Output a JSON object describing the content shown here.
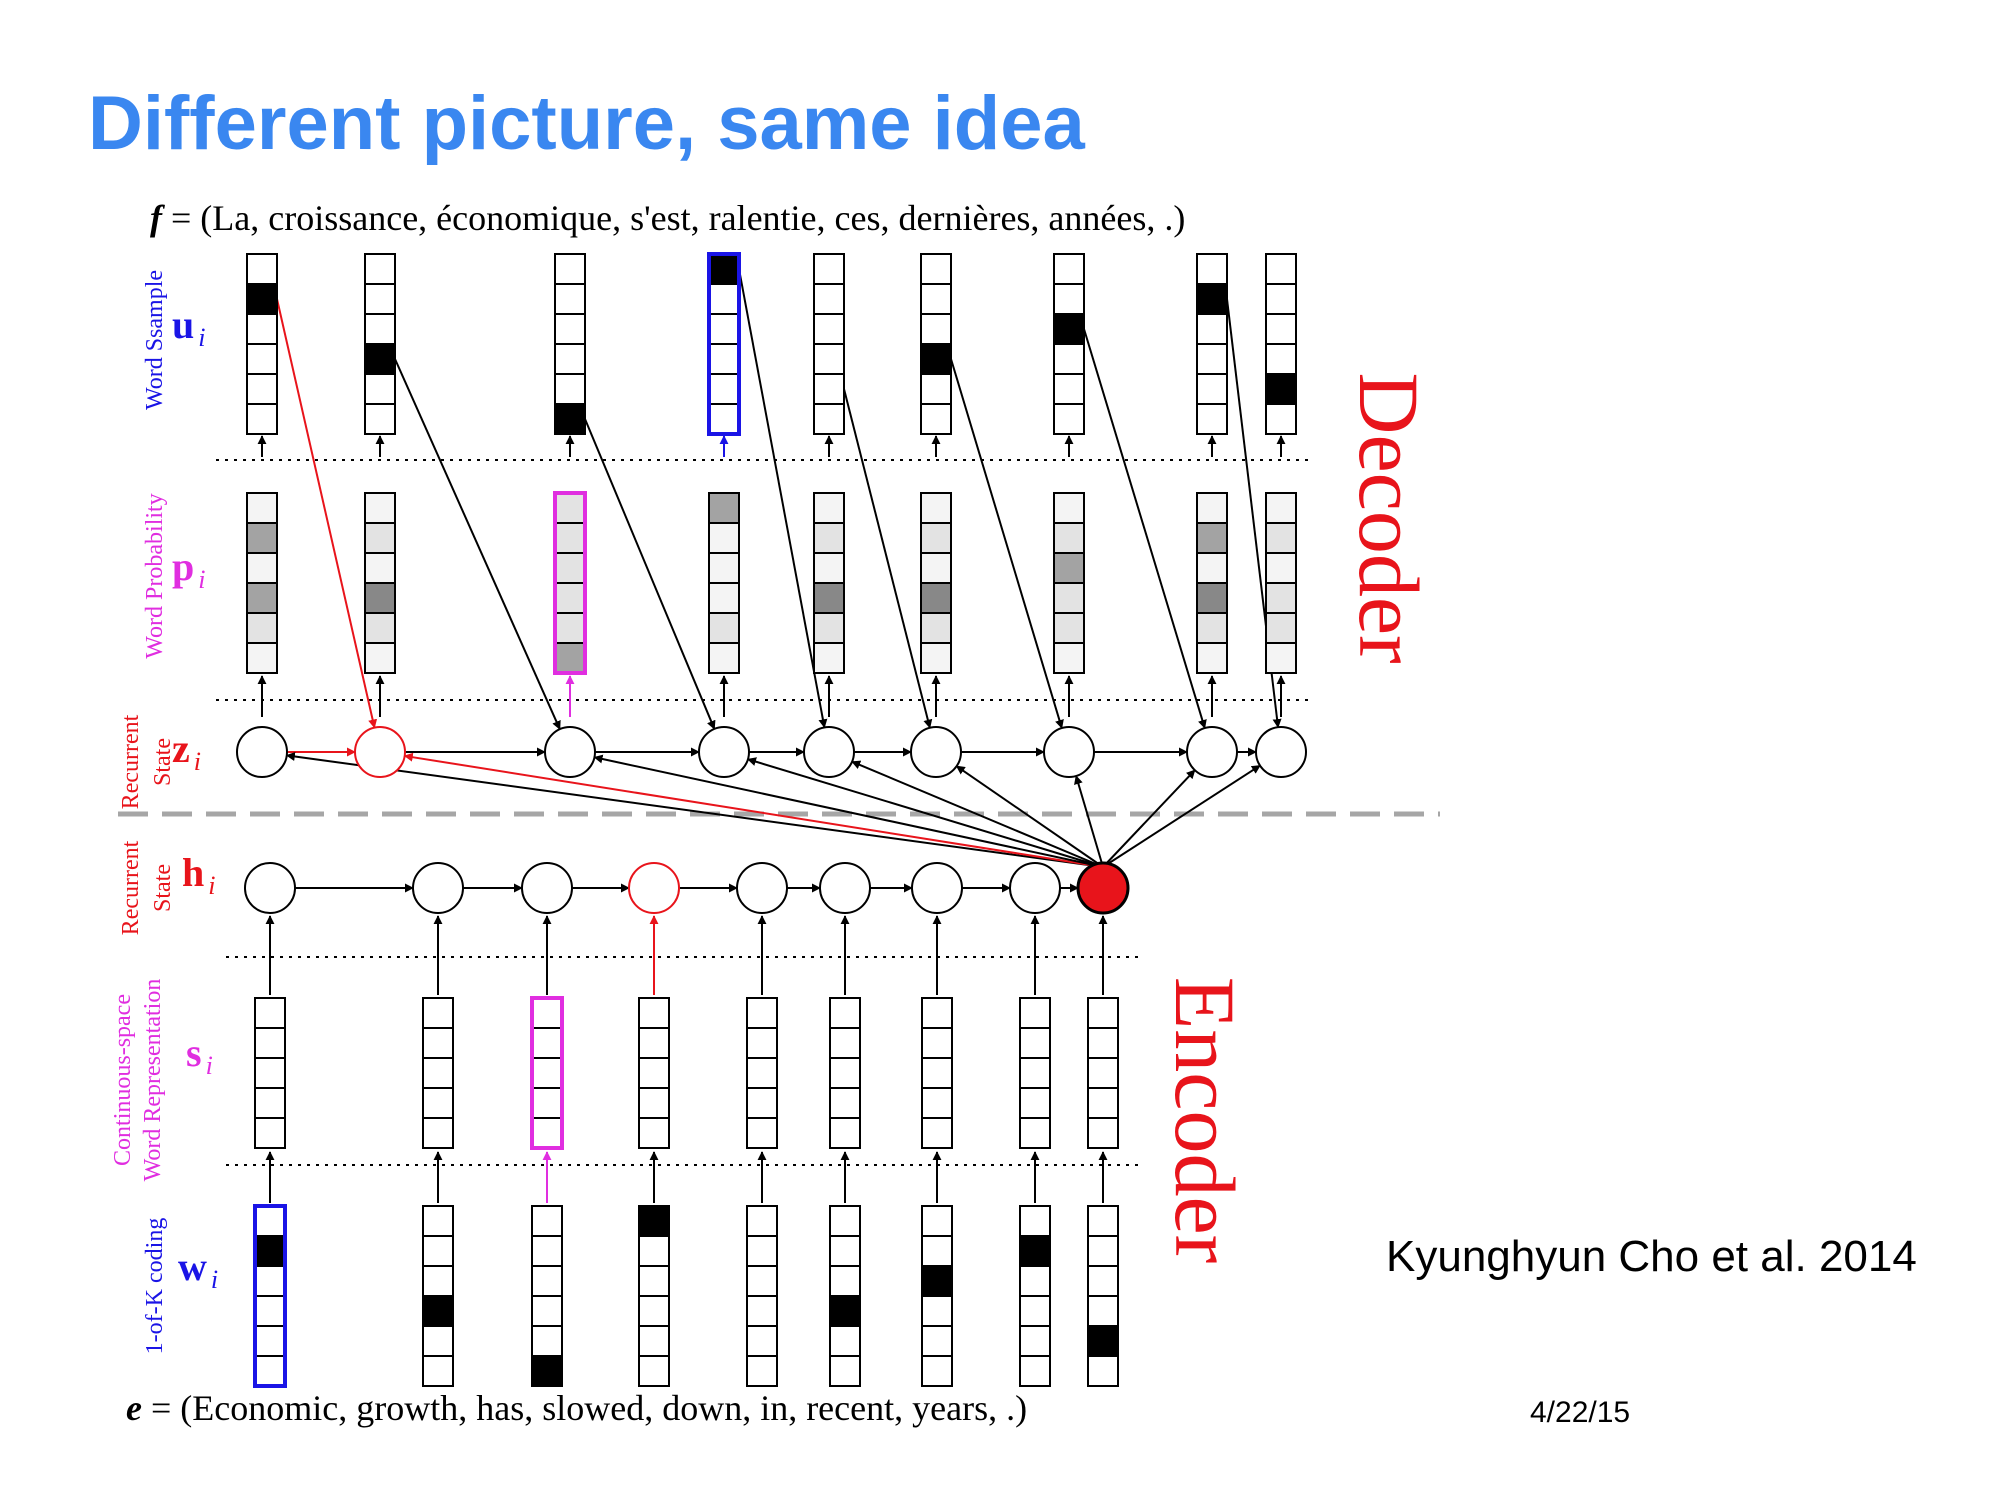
{
  "slide": {
    "title": "Different picture, same idea",
    "citation": "Kyunghyun Cho et al. 2014",
    "date": "4/22/15"
  },
  "diagram": {
    "target_sentence": {
      "prefix": "f",
      "text": " = (La, croissance, économique, s'est, ralentie, ces, dernières, années, .)"
    },
    "source_sentence": {
      "prefix": "e",
      "text": " = (Economic, growth, has, slowed, down, in, recent, years, .)"
    },
    "sections": {
      "decoder": "Decoder",
      "encoder": "Encoder"
    },
    "row_labels": {
      "u": {
        "symbol": "u",
        "sub": "i",
        "caption": [
          "Word Ssample"
        ]
      },
      "p": {
        "symbol": "p",
        "sub": "i",
        "caption": [
          "Word Probability"
        ]
      },
      "z": {
        "symbol": "z",
        "sub": "i",
        "caption": [
          "Recurrent",
          "State"
        ]
      },
      "h": {
        "symbol": "h",
        "sub": "i",
        "caption": [
          "Recurrent",
          "State"
        ]
      },
      "s": {
        "symbol": "s",
        "sub": "i",
        "caption": [
          "Continuous-space",
          "Word Representation"
        ]
      },
      "w": {
        "symbol": "w",
        "sub": "i",
        "caption": [
          "1-of-K coding"
        ]
      }
    },
    "colors": {
      "title": "#3a87f0",
      "red": "#e8141b",
      "blue": "#1a14e6",
      "magenta": "#e02ee0",
      "separator": "#a6a6a6"
    }
  }
}
